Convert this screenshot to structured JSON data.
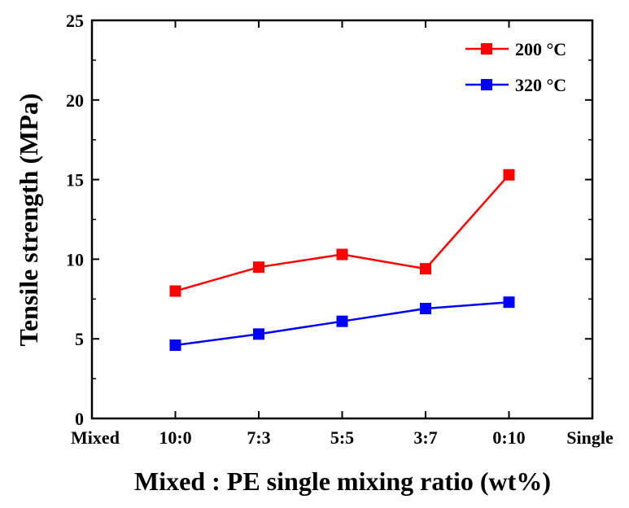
{
  "chart_data": {
    "type": "line",
    "title": "",
    "xlabel": "Mixed : PE single mixing ratio (wt%)",
    "ylabel": "Tensile strength (MPa)",
    "categories": [
      "Mixed",
      "10:0",
      "7:3",
      "5:5",
      "3:7",
      "0:10",
      "Single"
    ],
    "ylim": [
      0,
      25
    ],
    "yticks": [
      "0",
      "5",
      "10",
      "15",
      "20",
      "25"
    ],
    "legend": "top-right",
    "grid": false,
    "series": [
      {
        "name": "200 °C",
        "color": "#ff0000",
        "marker": "square",
        "x": [
          "10:0",
          "7:3",
          "5:5",
          "3:7",
          "0:10"
        ],
        "values": [
          8.0,
          9.5,
          10.3,
          9.4,
          15.3
        ]
      },
      {
        "name": "320 °C",
        "color": "#0000ff",
        "marker": "square",
        "x": [
          "10:0",
          "7:3",
          "5:5",
          "3:7",
          "0:10"
        ],
        "values": [
          4.6,
          5.3,
          6.1,
          6.9,
          7.3
        ]
      }
    ]
  }
}
